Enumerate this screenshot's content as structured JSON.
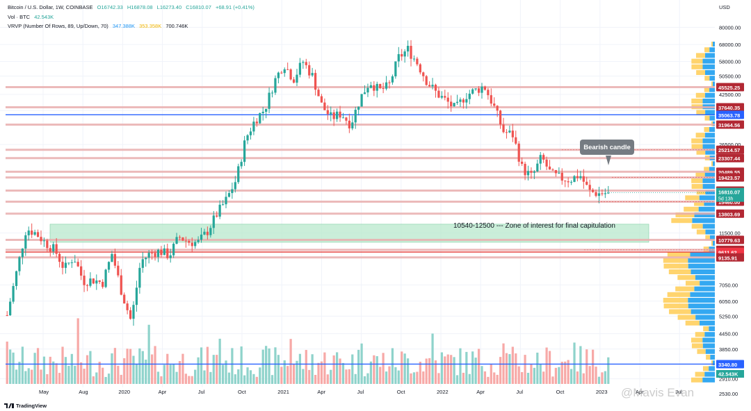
{
  "header": {
    "symbol": "Bitcoin / U.S. Dollar, 1W, COINBASE",
    "open": "O16742.33",
    "high": "H16878.08",
    "low": "L16273.40",
    "close": "C16810.07",
    "change": "+68.91 (+0.41%)",
    "vol_label": "Vol · BTC",
    "vol_value": "42.543K",
    "vrvp_label": "VRVP (Number Of Rows, 89, Up/Down, 70)",
    "vrvp_up": "347.388K",
    "vrvp_down": "353.358K",
    "vrvp_total": "700.746K"
  },
  "annotations": {
    "callout": "Bearish candle",
    "zone_text": "10540-12500   ---   Zone of interest for final capitulation"
  },
  "branding": {
    "platform": "TradingView",
    "watermark": "@Mavis Evan"
  },
  "colors": {
    "up": "#26a69a",
    "down": "#ef5350",
    "vol_up": "#8fd3cb",
    "vol_down": "#f7a9a7",
    "hline": "#e9aeae",
    "blue": "#2962ff",
    "profile_up": "#1e9ef0",
    "profile_down": "#ffcc55",
    "zone": "#b8e8cc"
  },
  "chart_data": {
    "type": "candlestick",
    "title": "Bitcoin / U.S. Dollar, 1W, COINBASE",
    "currency": "USD",
    "yscale": "log",
    "ylim": [
      2400,
      92000
    ],
    "y_ticks": [
      "80000.00",
      "68000.00",
      "58000.00",
      "50500.00",
      "42500.00",
      "36500.00",
      "26500.00",
      "11500.00",
      "7050.00",
      "6050.00",
      "5250.00",
      "4450.00",
      "3850.00",
      "2910.00",
      "2530.00"
    ],
    "x_ticks": [
      "May",
      "Aug",
      "2020",
      "Apr",
      "Jul",
      "Oct",
      "2021",
      "Apr",
      "Jul",
      "Oct",
      "2022",
      "Apr",
      "Jul",
      "Oct",
      "2023",
      "Apr",
      "Jul"
    ],
    "price_levels": [
      {
        "label": "45525.25",
        "value": 45525.25,
        "style": "red"
      },
      {
        "label": "37640.35",
        "value": 37640.35,
        "style": "red"
      },
      {
        "label": "35063.78",
        "value": 35063.78,
        "style": "blue"
      },
      {
        "label": "31964.56",
        "value": 31964.56,
        "style": "red"
      },
      {
        "label": "25214.57",
        "value": 25214.57,
        "style": "red"
      },
      {
        "label": "23307.44",
        "value": 23307.44,
        "style": "red"
      },
      {
        "label": "20489.55",
        "value": 20489.55,
        "style": "red"
      },
      {
        "label": "19423.57",
        "value": 19423.57,
        "style": "red"
      },
      {
        "label": "17167.33",
        "value": 17167.33,
        "style": "red"
      },
      {
        "label": "15460.00",
        "value": 15460.0,
        "style": "red"
      },
      {
        "label": "13803.69",
        "value": 13803.69,
        "style": "red"
      },
      {
        "label": "10779.63",
        "value": 10779.63,
        "style": "red"
      },
      {
        "label": "9813.00",
        "value": 9813.0,
        "style": "red"
      },
      {
        "label": "9611.62",
        "value": 9611.62,
        "style": "bright"
      },
      {
        "label": "9135.91",
        "value": 9135.91,
        "style": "red"
      },
      {
        "label": "3340.80",
        "value": 3340.8,
        "style": "blue"
      }
    ],
    "current_price": {
      "label": "16810.07",
      "value": 16810.07,
      "countdown": "5d 13h"
    },
    "current_volume": {
      "label": "42.543K"
    },
    "zone": {
      "low": 10540,
      "high": 12500,
      "label": "10540-12500 --- Zone of interest for final capitulation"
    },
    "close_path": [
      5300,
      8000,
      12000,
      11500,
      10500,
      9800,
      8200,
      9200,
      7300,
      7400,
      7200,
      9500,
      6600,
      5000,
      8800,
      9500,
      9700,
      9300,
      11100,
      10600,
      10500,
      11700,
      13800,
      15800,
      19000,
      28000,
      33500,
      37000,
      48000,
      57000,
      49000,
      58000,
      50500,
      38000,
      34000,
      35500,
      32000,
      41000,
      48000,
      44000,
      46000,
      60000,
      65000,
      57000,
      48000,
      43000,
      40000,
      37000,
      42000,
      44000,
      46000,
      38000,
      30000,
      29000,
      21000,
      19500,
      23500,
      20000,
      19300,
      19000,
      20000,
      17000,
      16700,
      16810
    ],
    "volume_profile_note": "Visible range volume profile, Up/Down, 89 rows"
  }
}
